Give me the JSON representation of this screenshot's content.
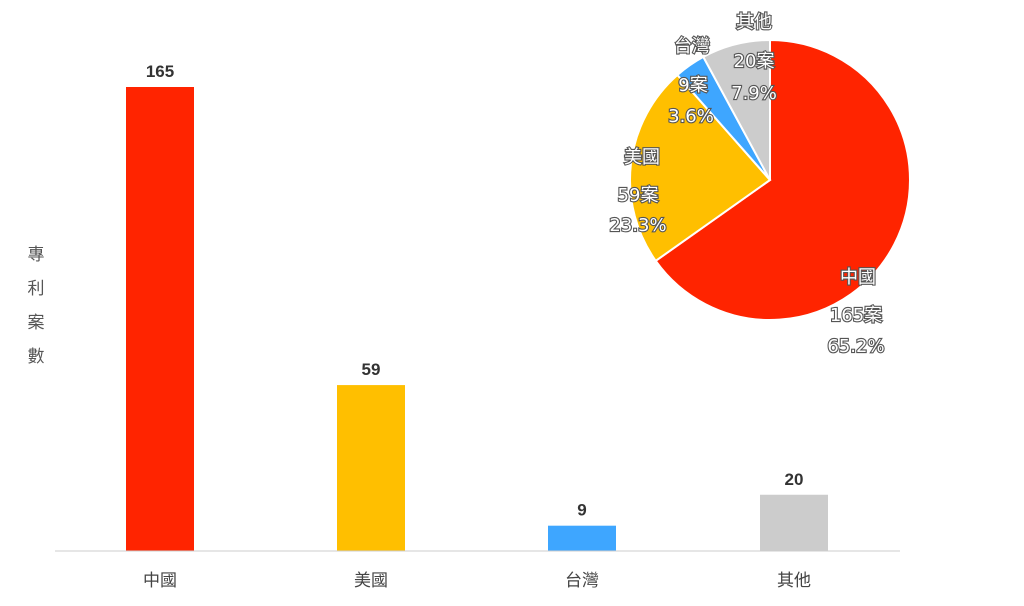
{
  "chart_data": [
    {
      "type": "bar",
      "ylabel": "專利案數",
      "categories": [
        "中國",
        "美國",
        "台灣",
        "其他"
      ],
      "values": [
        165,
        59,
        9,
        20
      ],
      "colors": [
        "#ff2400",
        "#ffbf00",
        "#3ea6ff",
        "#cccccc"
      ],
      "ylim": [
        0,
        165
      ],
      "grid": false
    },
    {
      "type": "pie",
      "slices": [
        {
          "label": "中國",
          "count_label": "165案",
          "percent_label": "65.2%",
          "value": 65.2,
          "color": "#ff2400"
        },
        {
          "label": "美國",
          "count_label": "59案",
          "percent_label": "23.3%",
          "value": 23.3,
          "color": "#ffbf00"
        },
        {
          "label": "台灣",
          "count_label": "9案",
          "percent_label": "3.6%",
          "value": 3.6,
          "color": "#3ea6ff"
        },
        {
          "label": "其他",
          "count_label": "20案",
          "percent_label": "7.9%",
          "value": 7.9,
          "color": "#cccccc"
        }
      ]
    }
  ]
}
